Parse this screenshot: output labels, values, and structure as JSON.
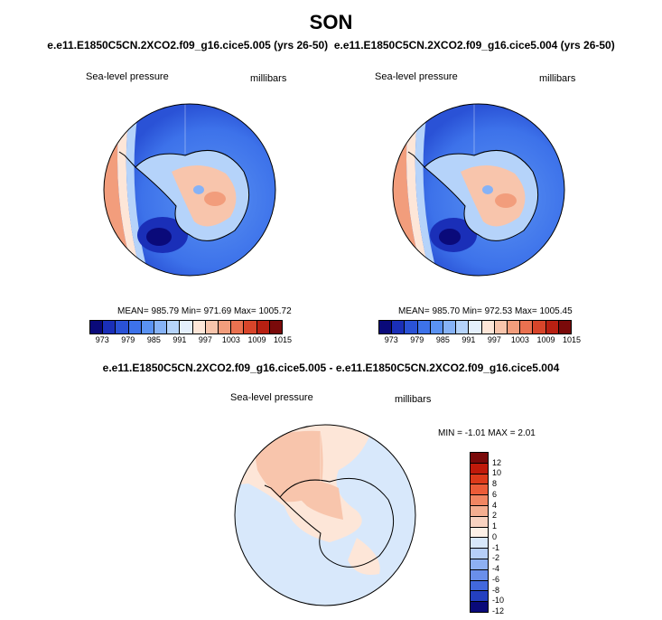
{
  "season": "SON",
  "left_panel": {
    "case": "e.e11.E1850C5CN.2XCO2.f09_g16.cice5.005 (yrs 26-50)",
    "variable": "Sea-level pressure",
    "units": "millibars",
    "stats": "MEAN= 985.79  Min= 971.69  Max= 1005.72"
  },
  "right_panel": {
    "case": "e.e11.E1850C5CN.2XCO2.f09_g16.cice5.004 (yrs 26-50)",
    "variable": "Sea-level pressure",
    "units": "millibars",
    "stats": "MEAN= 985.70  Min= 972.53  Max= 1005.45"
  },
  "diff_panel": {
    "title": "e.e11.E1850C5CN.2XCO2.f09_g16.cice5.005 - e.e11.E1850C5CN.2XCO2.f09_g16.cice5.004",
    "variable": "Sea-level pressure",
    "units": "millibars",
    "stats": "MIN = -1.01 MAX = 2.01"
  },
  "abs_colorbar": {
    "tick_labels": [
      "973",
      "979",
      "985",
      "991",
      "997",
      "1003",
      "1009",
      "1015"
    ],
    "colors": [
      "#0a0a7a",
      "#1a2fb8",
      "#2a52d6",
      "#3d72ea",
      "#5a92f2",
      "#86b2f6",
      "#b5d3fa",
      "#e4effc",
      "#fde6d8",
      "#f8c5ac",
      "#f29d7c",
      "#ea7150",
      "#d8452a",
      "#b82012",
      "#7a0a0a"
    ]
  },
  "diff_colorbar": {
    "tick_labels": [
      "12",
      "10",
      "8",
      "6",
      "4",
      "2",
      "1",
      "0",
      "-1",
      "-2",
      "-4",
      "-6",
      "-8",
      "-10",
      "-12"
    ],
    "colors": [
      "#7a0a0a",
      "#c01a0a",
      "#dd3a1a",
      "#ec5c38",
      "#f18662",
      "#f4ae90",
      "#f8d2c0",
      "#fdf0e6",
      "#d8e8fb",
      "#b6cef8",
      "#8eb0f2",
      "#6a8fea",
      "#4268dc",
      "#2440c0",
      "#0a0a7a"
    ]
  }
}
